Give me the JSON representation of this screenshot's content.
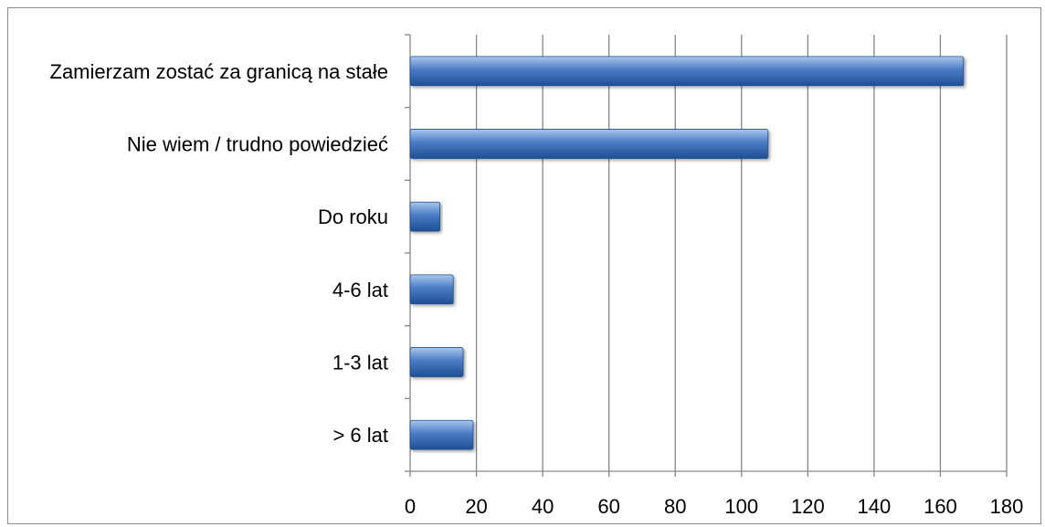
{
  "chart_data": {
    "type": "bar",
    "orientation": "horizontal",
    "categories": [
      "Zamierzam zostać za granicą na stałe",
      "Nie wiem / trudno powiedzieć",
      "Do roku",
      "4-6 lat",
      "1-3 lat",
      "> 6 lat"
    ],
    "values": [
      167,
      108,
      9,
      13,
      16,
      19
    ],
    "xlim": [
      0,
      180
    ],
    "xticks": [
      "0",
      "20",
      "40",
      "60",
      "80",
      "100",
      "120",
      "140",
      "160",
      "180"
    ],
    "grid": "vertical",
    "legend": "none",
    "colors": {
      "bar": "#4a7cc4",
      "bar_light": "#a9c6ec",
      "bar_dark": "#1f4f93",
      "grid": "#868686"
    }
  }
}
